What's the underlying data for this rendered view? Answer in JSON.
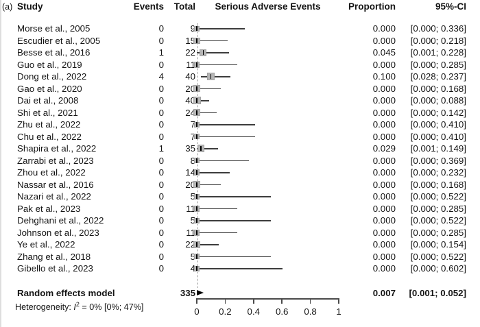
{
  "figure_label": "(a)",
  "columns": {
    "study": "Study",
    "events": "Events",
    "total": "Total",
    "plot_title": "Serious Adverse Events",
    "proportion": "Proportion",
    "ci": "95%-CI"
  },
  "chart_data": {
    "type": "forest",
    "title": "Serious Adverse Events",
    "x_axis": {
      "min": 0,
      "max": 1,
      "ticks": [
        {
          "v": 0,
          "label": "0"
        },
        {
          "v": 0.2,
          "label": "0.2"
        },
        {
          "v": 0.4,
          "label": "0.4"
        },
        {
          "v": 0.6,
          "label": "0.6"
        },
        {
          "v": 0.8,
          "label": "0.8"
        },
        {
          "v": 1,
          "label": "1"
        }
      ]
    },
    "ref_line_value": 0.007,
    "studies": [
      {
        "study": "Morse et al., 2005",
        "events": "0",
        "total": 9,
        "p": 0.0,
        "lo": 0.0,
        "hi": 0.336,
        "p_label": "0.000",
        "ci_label": "[0.000; 0.336]"
      },
      {
        "study": "Escudier et al., 2005",
        "events": "0",
        "total": 15,
        "p": 0.0,
        "lo": 0.0,
        "hi": 0.218,
        "p_label": "0.000",
        "ci_label": "[0.000; 0.218]"
      },
      {
        "study": "Besse et al., 2016",
        "events": "1",
        "total": 22,
        "p": 0.045,
        "lo": 0.001,
        "hi": 0.228,
        "p_label": "0.045",
        "ci_label": "[0.001; 0.228]"
      },
      {
        "study": "Guo et al., 2019",
        "events": "0",
        "total": 11,
        "p": 0.0,
        "lo": 0.0,
        "hi": 0.285,
        "p_label": "0.000",
        "ci_label": "[0.000; 0.285]"
      },
      {
        "study": "Dong et al., 2022",
        "events": "4",
        "total": 40,
        "p": 0.1,
        "lo": 0.028,
        "hi": 0.237,
        "p_label": "0.100",
        "ci_label": "[0.028; 0.237]"
      },
      {
        "study": "Gao et al., 2020",
        "events": "0",
        "total": 20,
        "p": 0.0,
        "lo": 0.0,
        "hi": 0.168,
        "p_label": "0.000",
        "ci_label": "[0.000; 0.168]"
      },
      {
        "study": "Dai et al., 2008",
        "events": "0",
        "total": 40,
        "p": 0.0,
        "lo": 0.0,
        "hi": 0.088,
        "p_label": "0.000",
        "ci_label": "[0.000; 0.088]"
      },
      {
        "study": "Shi et al., 2021",
        "events": "0",
        "total": 24,
        "p": 0.0,
        "lo": 0.0,
        "hi": 0.142,
        "p_label": "0.000",
        "ci_label": "[0.000; 0.142]"
      },
      {
        "study": "Zhu et al., 2022",
        "events": "0",
        "total": 7,
        "p": 0.0,
        "lo": 0.0,
        "hi": 0.41,
        "p_label": "0.000",
        "ci_label": "[0.000; 0.410]"
      },
      {
        "study": "Chu et al., 2022",
        "events": "0",
        "total": 7,
        "p": 0.0,
        "lo": 0.0,
        "hi": 0.41,
        "p_label": "0.000",
        "ci_label": "[0.000; 0.410]"
      },
      {
        "study": "Shapira et al., 2022",
        "events": "1",
        "total": 35,
        "p": 0.029,
        "lo": 0.001,
        "hi": 0.149,
        "p_label": "0.029",
        "ci_label": "[0.001; 0.149]"
      },
      {
        "study": "Zarrabi et al., 2023",
        "events": "0",
        "total": 8,
        "p": 0.0,
        "lo": 0.0,
        "hi": 0.369,
        "p_label": "0.000",
        "ci_label": "[0.000; 0.369]"
      },
      {
        "study": "Zhou et al., 2022",
        "events": "0",
        "total": 14,
        "p": 0.0,
        "lo": 0.0,
        "hi": 0.232,
        "p_label": "0.000",
        "ci_label": "[0.000; 0.232]"
      },
      {
        "study": "Nassar et al., 2016",
        "events": "0",
        "total": 20,
        "p": 0.0,
        "lo": 0.0,
        "hi": 0.168,
        "p_label": "0.000",
        "ci_label": "[0.000; 0.168]"
      },
      {
        "study": "Nazari et al., 2022",
        "events": "0",
        "total": 5,
        "p": 0.0,
        "lo": 0.0,
        "hi": 0.522,
        "p_label": "0.000",
        "ci_label": "[0.000; 0.522]"
      },
      {
        "study": "Pak et al., 2023",
        "events": "0",
        "total": 11,
        "p": 0.0,
        "lo": 0.0,
        "hi": 0.285,
        "p_label": "0.000",
        "ci_label": "[0.000; 0.285]"
      },
      {
        "study": "Dehghani et al., 2022",
        "events": "0",
        "total": 5,
        "p": 0.0,
        "lo": 0.0,
        "hi": 0.522,
        "p_label": "0.000",
        "ci_label": "[0.000; 0.522]"
      },
      {
        "study": "Johnson et al., 2023",
        "events": "0",
        "total": 11,
        "p": 0.0,
        "lo": 0.0,
        "hi": 0.285,
        "p_label": "0.000",
        "ci_label": "[0.000; 0.285]"
      },
      {
        "study": "Ye et al., 2022",
        "events": "0",
        "total": 22,
        "p": 0.0,
        "lo": 0.0,
        "hi": 0.154,
        "p_label": "0.000",
        "ci_label": "[0.000; 0.154]"
      },
      {
        "study": "Zhang et al., 2018",
        "events": "0",
        "total": 5,
        "p": 0.0,
        "lo": 0.0,
        "hi": 0.522,
        "p_label": "0.000",
        "ci_label": "[0.000; 0.522]"
      },
      {
        "study": "Gibello et al., 2023",
        "events": "0",
        "total": 4,
        "p": 0.0,
        "lo": 0.0,
        "hi": 0.602,
        "p_label": "0.000",
        "ci_label": "[0.000; 0.602]"
      }
    ],
    "summary": {
      "label": "Random effects model",
      "total": "335",
      "p": 0.007,
      "lo": 0.001,
      "hi": 0.052,
      "p_label": "0.007",
      "ci_label": "[0.001; 0.052]"
    },
    "heterogeneity": {
      "prefix": "Heterogeneity: ",
      "stat": "I",
      "sup": "2",
      "rest": " = 0% [0%; 47%]"
    }
  },
  "colors": {
    "square": "#b5b5b5",
    "square_border": "#a2a2a2",
    "ci_line": "#3c3c3c",
    "estimate_tick": "#000000",
    "axis": "#4a4a4a",
    "ref_line": "#8f8f8f",
    "summary_marker": "#000000",
    "text": "#141414"
  }
}
